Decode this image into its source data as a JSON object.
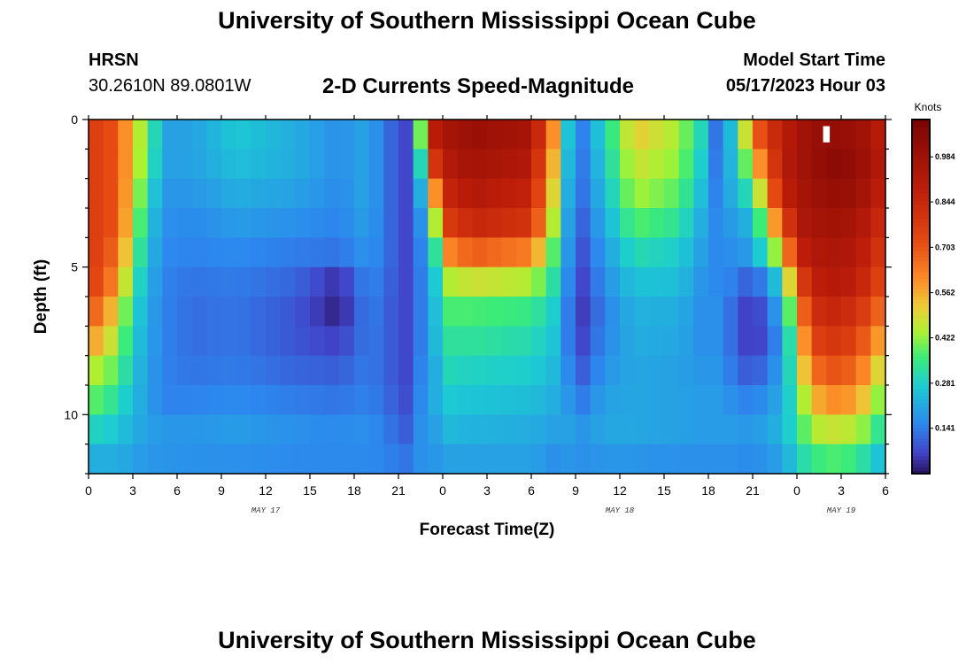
{
  "header": {
    "title": "University of Southern Mississippi Ocean Cube",
    "station_code": "HRSN",
    "station_coords": "30.2610N  89.0801W",
    "subtitle": "2-D Currents Speed-Magnitude",
    "model_start_label": "Model Start Time",
    "model_start_time": "05/17/2023 Hour 03"
  },
  "footer": {
    "title": "University of Southern Mississippi Ocean Cube"
  },
  "colors": {
    "background": "#ffffff",
    "axis": "#000000",
    "missing": "#ffffff"
  },
  "chart_data": {
    "type": "heatmap",
    "title": "2-D Currents Speed-Magnitude",
    "xlabel": "Forecast Time(Z)",
    "ylabel": "Depth (ft)",
    "x_range_hours": [
      0,
      54
    ],
    "y_range_ft": [
      0,
      12
    ],
    "y_inverted": true,
    "x_tick_hours": [
      0,
      3,
      6,
      9,
      12,
      15,
      18,
      21,
      24,
      27,
      30,
      33,
      36,
      39,
      42,
      45,
      48,
      51,
      54
    ],
    "x_tick_labels": [
      "0",
      "3",
      "6",
      "9",
      "12",
      "15",
      "18",
      "21",
      "0",
      "3",
      "6",
      "9",
      "12",
      "15",
      "18",
      "21",
      "0",
      "3",
      "6"
    ],
    "y_ticks": [
      0,
      5,
      10
    ],
    "y_tick_labels": [
      "0",
      "5",
      "10"
    ],
    "date_labels": [
      {
        "label": "MAY 17",
        "hour": 12
      },
      {
        "label": "MAY 18",
        "hour": 36
      },
      {
        "label": "MAY 19",
        "hour": 51
      }
    ],
    "colorbar": {
      "unit": "Knots",
      "min": 0.0,
      "max": 1.1,
      "ticks": [
        0.141,
        0.281,
        0.422,
        0.562,
        0.703,
        0.844,
        0.984
      ],
      "tick_labels": [
        "0.141",
        "0.281",
        "0.422",
        "0.562",
        "0.703",
        "0.844",
        "0.984"
      ]
    },
    "grid": false,
    "columns_count": 54,
    "rows_count": 12,
    "row_depth_ft": [
      0.5,
      1.5,
      2.5,
      3.5,
      4.5,
      5.5,
      6.5,
      7.5,
      8.5,
      9.5,
      10.5,
      11.5
    ],
    "keyframe_hours": [
      0,
      2,
      3,
      4,
      5,
      7,
      10,
      14,
      17,
      19,
      20,
      21.5,
      22.5,
      23.5,
      24.5,
      26,
      30,
      31.5,
      32.5,
      33.5,
      35,
      37,
      40,
      41.5,
      42.5,
      44,
      45,
      47,
      48,
      49,
      51,
      53,
      54
    ],
    "keyframe_speeds_knots": [
      [
        0.78,
        0.78,
        0.78,
        0.78,
        0.78,
        0.78,
        0.72,
        0.6,
        0.47,
        0.4,
        0.3,
        0.22
      ],
      [
        0.7,
        0.7,
        0.7,
        0.7,
        0.66,
        0.6,
        0.5,
        0.44,
        0.38,
        0.32,
        0.27,
        0.22
      ],
      [
        0.5,
        0.5,
        0.48,
        0.45,
        0.4,
        0.34,
        0.3,
        0.28,
        0.26,
        0.24,
        0.22,
        0.2
      ],
      [
        0.4,
        0.38,
        0.33,
        0.29,
        0.26,
        0.24,
        0.22,
        0.21,
        0.2,
        0.2,
        0.2,
        0.18
      ],
      [
        0.2,
        0.2,
        0.18,
        0.17,
        0.16,
        0.15,
        0.15,
        0.15,
        0.15,
        0.15,
        0.18,
        0.18
      ],
      [
        0.2,
        0.2,
        0.18,
        0.16,
        0.15,
        0.13,
        0.12,
        0.12,
        0.13,
        0.15,
        0.18,
        0.17
      ],
      [
        0.27,
        0.25,
        0.22,
        0.19,
        0.16,
        0.14,
        0.13,
        0.13,
        0.14,
        0.16,
        0.19,
        0.17
      ],
      [
        0.22,
        0.22,
        0.2,
        0.17,
        0.14,
        0.11,
        0.09,
        0.09,
        0.11,
        0.14,
        0.17,
        0.16
      ],
      [
        0.17,
        0.17,
        0.16,
        0.15,
        0.13,
        0.04,
        0.02,
        0.06,
        0.1,
        0.13,
        0.16,
        0.16
      ],
      [
        0.21,
        0.21,
        0.21,
        0.2,
        0.18,
        0.16,
        0.15,
        0.14,
        0.14,
        0.15,
        0.17,
        0.16
      ],
      [
        0.13,
        0.13,
        0.13,
        0.13,
        0.13,
        0.12,
        0.11,
        0.11,
        0.11,
        0.12,
        0.14,
        0.15
      ],
      [
        0.07,
        0.07,
        0.07,
        0.07,
        0.07,
        0.07,
        0.07,
        0.07,
        0.07,
        0.08,
        0.1,
        0.13
      ],
      [
        0.4,
        0.3,
        0.22,
        0.17,
        0.15,
        0.14,
        0.14,
        0.14,
        0.15,
        0.16,
        0.17,
        0.17
      ],
      [
        0.9,
        0.8,
        0.6,
        0.45,
        0.33,
        0.27,
        0.25,
        0.24,
        0.22,
        0.22,
        0.2,
        0.18
      ],
      [
        0.96,
        0.92,
        0.86,
        0.78,
        0.62,
        0.45,
        0.37,
        0.33,
        0.3,
        0.27,
        0.24,
        0.2
      ],
      [
        1.0,
        0.97,
        0.92,
        0.85,
        0.69,
        0.48,
        0.37,
        0.33,
        0.29,
        0.26,
        0.23,
        0.2
      ],
      [
        0.96,
        0.92,
        0.86,
        0.8,
        0.63,
        0.45,
        0.35,
        0.31,
        0.28,
        0.25,
        0.22,
        0.2
      ],
      [
        0.6,
        0.55,
        0.5,
        0.45,
        0.38,
        0.32,
        0.28,
        0.26,
        0.24,
        0.22,
        0.2,
        0.17
      ],
      [
        0.26,
        0.24,
        0.22,
        0.2,
        0.18,
        0.16,
        0.14,
        0.14,
        0.16,
        0.18,
        0.2,
        0.18
      ],
      [
        0.15,
        0.14,
        0.13,
        0.11,
        0.09,
        0.07,
        0.06,
        0.07,
        0.1,
        0.14,
        0.18,
        0.17
      ],
      [
        0.3,
        0.28,
        0.25,
        0.22,
        0.19,
        0.17,
        0.15,
        0.16,
        0.18,
        0.2,
        0.21,
        0.18
      ],
      [
        0.52,
        0.48,
        0.44,
        0.38,
        0.31,
        0.26,
        0.23,
        0.22,
        0.21,
        0.21,
        0.21,
        0.18
      ],
      [
        0.44,
        0.42,
        0.38,
        0.33,
        0.28,
        0.25,
        0.22,
        0.21,
        0.2,
        0.2,
        0.2,
        0.17
      ],
      [
        0.3,
        0.28,
        0.25,
        0.22,
        0.2,
        0.18,
        0.17,
        0.17,
        0.18,
        0.19,
        0.19,
        0.17
      ],
      [
        0.13,
        0.14,
        0.15,
        0.16,
        0.16,
        0.16,
        0.17,
        0.17,
        0.18,
        0.19,
        0.19,
        0.17
      ],
      [
        0.3,
        0.28,
        0.25,
        0.2,
        0.17,
        0.14,
        0.1,
        0.1,
        0.12,
        0.16,
        0.19,
        0.17
      ],
      [
        0.65,
        0.5,
        0.35,
        0.25,
        0.2,
        0.08,
        0.03,
        0.03,
        0.08,
        0.14,
        0.18,
        0.16
      ],
      [
        0.9,
        0.9,
        0.85,
        0.7,
        0.5,
        0.3,
        0.22,
        0.18,
        0.2,
        0.22,
        0.24,
        0.2
      ],
      [
        0.94,
        0.95,
        0.95,
        0.92,
        0.85,
        0.7,
        0.55,
        0.45,
        0.4,
        0.35,
        0.32,
        0.28
      ],
      [
        1.0,
        1.0,
        0.98,
        0.96,
        0.92,
        0.88,
        0.82,
        0.75,
        0.66,
        0.55,
        0.45,
        0.35
      ],
      [
        1.02,
        1.05,
        1.02,
        0.98,
        0.95,
        0.92,
        0.86,
        0.8,
        0.72,
        0.62,
        0.48,
        0.38
      ],
      [
        0.96,
        0.97,
        0.94,
        0.9,
        0.86,
        0.82,
        0.74,
        0.66,
        0.58,
        0.5,
        0.4,
        0.3
      ],
      [
        0.85,
        0.88,
        0.85,
        0.8,
        0.75,
        0.7,
        0.62,
        0.52,
        0.42,
        0.35,
        0.28,
        0.22
      ]
    ],
    "missing_cells": [
      {
        "hour": 50,
        "depth_ft": 0.5
      }
    ]
  }
}
